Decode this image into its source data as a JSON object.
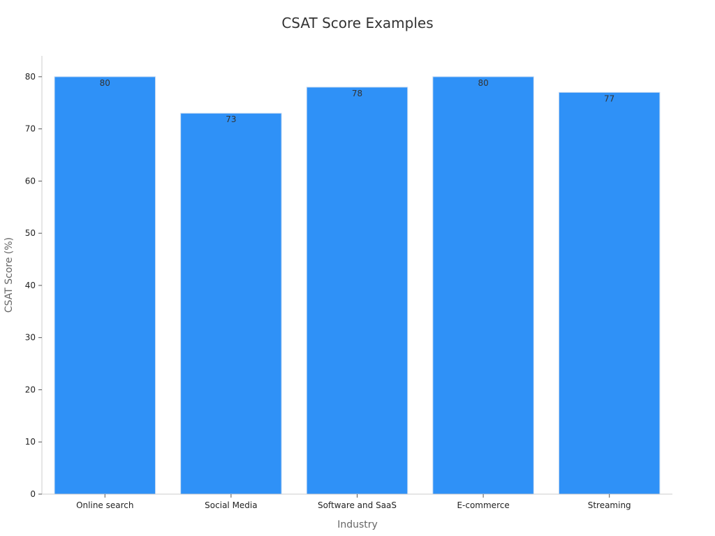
{
  "chart_data": {
    "type": "bar",
    "title": "CSAT Score Examples",
    "xlabel": "Industry",
    "ylabel": "CSAT Score (%)",
    "categories": [
      "Online search",
      "Social Media",
      "Software and SaaS",
      "E-commerce",
      "Streaming"
    ],
    "values": [
      80,
      73,
      78,
      80,
      77
    ],
    "ylim": [
      0,
      84
    ],
    "yticks": [
      0,
      10,
      20,
      30,
      40,
      50,
      60,
      70,
      80
    ],
    "grid": false,
    "legend": "none",
    "bar_color": "#2f91f7",
    "bar_edge_color": "#c9dcf2",
    "axis_color": "#cccccc"
  }
}
